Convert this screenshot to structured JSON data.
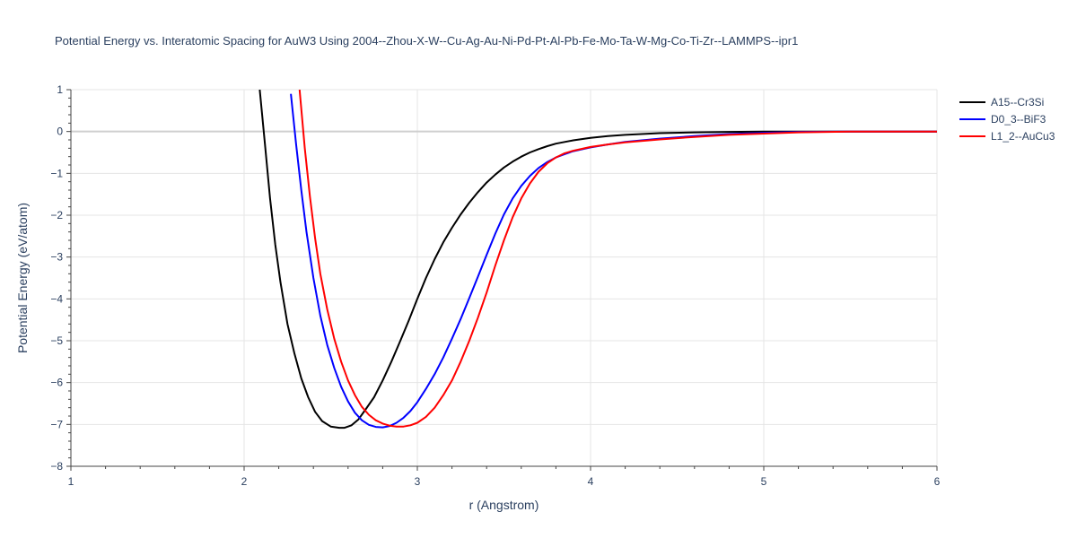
{
  "chart_data": {
    "type": "line",
    "title": "Potential Energy vs. Interatomic Spacing for AuW3 Using 2004--Zhou-X-W--Cu-Ag-Au-Ni-Pd-Pt-Al-Pb-Fe-Mo-Ta-W-Mg-Co-Ti-Zr--LAMMPS--ipr1",
    "xlabel": "r (Angstrom)",
    "ylabel": "Potential Energy (eV/atom)",
    "xlim": [
      1,
      6
    ],
    "ylim": [
      -8,
      1
    ],
    "xticks": [
      1,
      2,
      3,
      4,
      5,
      6
    ],
    "xtick_labels": [
      "1",
      "2",
      "3",
      "4",
      "5",
      "6"
    ],
    "yticks": [
      1,
      0,
      -1,
      -2,
      -3,
      -4,
      -5,
      -6,
      -7,
      -8
    ],
    "ytick_labels": [
      "1",
      "0",
      "−1",
      "−2",
      "−3",
      "−4",
      "−5",
      "−6",
      "−7",
      "−8"
    ],
    "grid": true,
    "legend_position": "top-right",
    "series": [
      {
        "name": "A15--Cr3Si",
        "color": "#000000",
        "x": [
          2.09,
          2.12,
          2.15,
          2.18,
          2.21,
          2.25,
          2.29,
          2.33,
          2.37,
          2.41,
          2.45,
          2.5,
          2.55,
          2.58,
          2.62,
          2.66,
          2.7,
          2.75,
          2.8,
          2.85,
          2.9,
          2.95,
          3.0,
          3.05,
          3.1,
          3.15,
          3.2,
          3.25,
          3.3,
          3.35,
          3.4,
          3.45,
          3.5,
          3.55,
          3.6,
          3.65,
          3.7,
          3.75,
          3.8,
          3.9,
          4.0,
          4.1,
          4.2,
          4.4,
          4.6,
          4.8,
          5.0,
          5.2,
          5.5,
          6.0
        ],
        "y": [
          1.0,
          -0.3,
          -1.6,
          -2.7,
          -3.6,
          -4.6,
          -5.3,
          -5.9,
          -6.35,
          -6.7,
          -6.92,
          -7.05,
          -7.08,
          -7.08,
          -7.02,
          -6.88,
          -6.65,
          -6.35,
          -5.95,
          -5.5,
          -5.02,
          -4.52,
          -4.0,
          -3.5,
          -3.05,
          -2.65,
          -2.3,
          -1.98,
          -1.7,
          -1.45,
          -1.22,
          -1.03,
          -0.86,
          -0.72,
          -0.6,
          -0.5,
          -0.42,
          -0.35,
          -0.29,
          -0.21,
          -0.15,
          -0.11,
          -0.08,
          -0.04,
          -0.02,
          -0.01,
          0.0,
          0.0,
          0.0,
          0.0
        ]
      },
      {
        "name": "D0_3--BiF3",
        "color": "#0000ff",
        "x": [
          2.27,
          2.3,
          2.33,
          2.36,
          2.4,
          2.44,
          2.48,
          2.52,
          2.56,
          2.6,
          2.64,
          2.68,
          2.72,
          2.76,
          2.8,
          2.84,
          2.88,
          2.92,
          2.96,
          3.0,
          3.05,
          3.1,
          3.15,
          3.2,
          3.25,
          3.3,
          3.35,
          3.4,
          3.45,
          3.5,
          3.55,
          3.6,
          3.65,
          3.7,
          3.75,
          3.8,
          3.85,
          3.9,
          4.0,
          4.1,
          4.2,
          4.4,
          4.6,
          4.8,
          5.0,
          5.2,
          5.5,
          6.0
        ],
        "y": [
          0.9,
          -0.3,
          -1.4,
          -2.4,
          -3.5,
          -4.4,
          -5.1,
          -5.65,
          -6.1,
          -6.45,
          -6.72,
          -6.9,
          -7.01,
          -7.06,
          -7.07,
          -7.04,
          -6.96,
          -6.84,
          -6.68,
          -6.47,
          -6.15,
          -5.8,
          -5.4,
          -4.95,
          -4.48,
          -3.98,
          -3.47,
          -2.95,
          -2.44,
          -1.98,
          -1.6,
          -1.3,
          -1.06,
          -0.87,
          -0.73,
          -0.62,
          -0.54,
          -0.47,
          -0.38,
          -0.31,
          -0.25,
          -0.17,
          -0.11,
          -0.06,
          -0.03,
          -0.01,
          0.0,
          0.0
        ]
      },
      {
        "name": "L1_2--AuCu3",
        "color": "#ff0000",
        "x": [
          2.32,
          2.35,
          2.38,
          2.41,
          2.44,
          2.48,
          2.52,
          2.56,
          2.6,
          2.64,
          2.68,
          2.72,
          2.76,
          2.8,
          2.84,
          2.88,
          2.92,
          2.96,
          3.0,
          3.05,
          3.1,
          3.15,
          3.2,
          3.25,
          3.3,
          3.35,
          3.4,
          3.45,
          3.5,
          3.55,
          3.6,
          3.65,
          3.7,
          3.75,
          3.8,
          3.85,
          3.9,
          4.0,
          4.1,
          4.2,
          4.4,
          4.6,
          4.8,
          5.0,
          5.2,
          5.5,
          6.0
        ],
        "y": [
          1.0,
          -0.4,
          -1.55,
          -2.55,
          -3.4,
          -4.25,
          -4.95,
          -5.5,
          -5.95,
          -6.3,
          -6.58,
          -6.77,
          -6.9,
          -6.98,
          -7.03,
          -7.05,
          -7.05,
          -7.02,
          -6.96,
          -6.82,
          -6.6,
          -6.3,
          -5.95,
          -5.5,
          -5.0,
          -4.45,
          -3.85,
          -3.2,
          -2.6,
          -2.05,
          -1.6,
          -1.24,
          -0.96,
          -0.76,
          -0.62,
          -0.52,
          -0.46,
          -0.37,
          -0.31,
          -0.26,
          -0.19,
          -0.13,
          -0.08,
          -0.05,
          -0.02,
          0.0,
          0.0
        ]
      }
    ]
  }
}
